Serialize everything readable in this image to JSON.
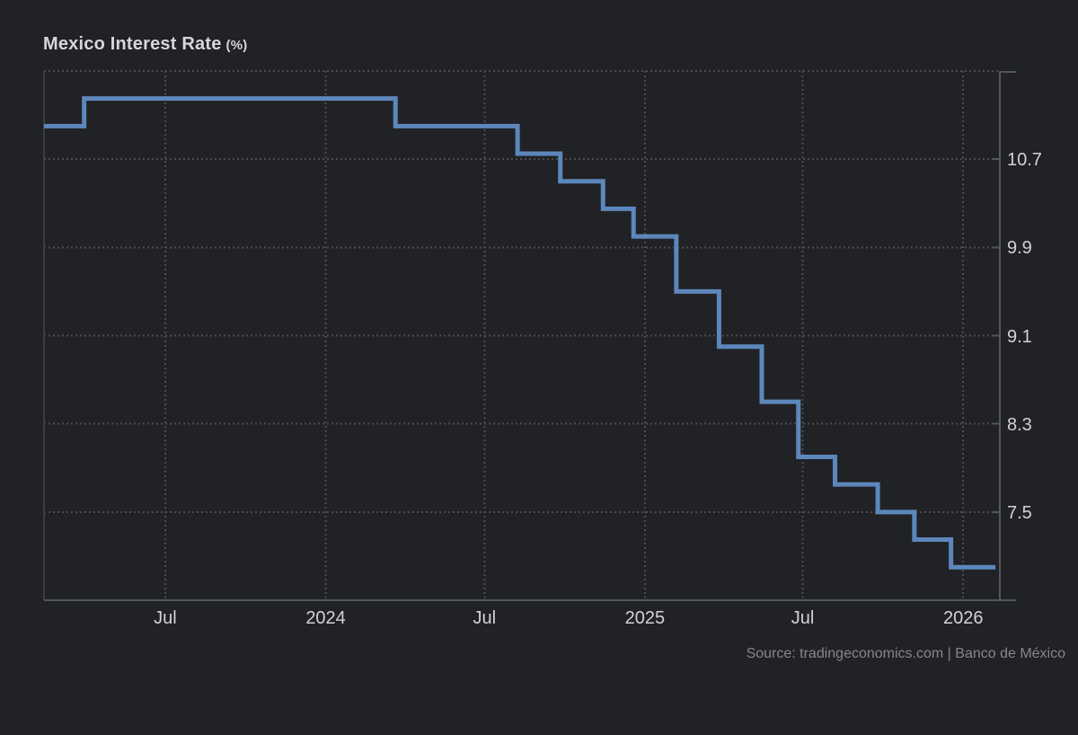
{
  "title": {
    "main": "Mexico Interest Rate",
    "unit": "(%)"
  },
  "source": "Source: tradingeconomics.com | Banco de México",
  "colors": {
    "background": "#212226",
    "line": "#5d87bc",
    "grid": "#4a4c4f",
    "axis": "#53565a",
    "border_left": "#3b3d40",
    "text": "#d2d3d5",
    "muted": "#85878a"
  },
  "chart_data": {
    "type": "line",
    "step": true,
    "title": "Mexico Interest Rate (%)",
    "xlabel": "",
    "ylabel": "",
    "grid": "dotted",
    "legend": false,
    "x_domain": [
      "2023-02-12",
      "2026-02-12"
    ],
    "y_domain": [
      6.7,
      11.5
    ],
    "y_ticks": [
      10.7,
      9.9,
      9.1,
      8.3,
      7.5
    ],
    "x_ticks": [
      {
        "date": "2023-07-01",
        "label": "Jul"
      },
      {
        "date": "2024-01-01",
        "label": "2024"
      },
      {
        "date": "2024-07-01",
        "label": "Jul"
      },
      {
        "date": "2025-01-01",
        "label": "2025"
      },
      {
        "date": "2025-07-01",
        "label": "Jul"
      },
      {
        "date": "2026-01-01",
        "label": "2026"
      }
    ],
    "series": [
      {
        "name": "Mexico Interest Rate",
        "unit": "%",
        "end_date": "2026-02-07",
        "points": [
          [
            "2023-02-12",
            11.0
          ],
          [
            "2023-03-30",
            11.25
          ],
          [
            "2024-03-21",
            11.0
          ],
          [
            "2024-08-08",
            10.75
          ],
          [
            "2024-09-26",
            10.5
          ],
          [
            "2024-11-14",
            10.25
          ],
          [
            "2024-12-19",
            10.0
          ],
          [
            "2025-02-06",
            9.5
          ],
          [
            "2025-03-27",
            9.0
          ],
          [
            "2025-05-15",
            8.5
          ],
          [
            "2025-06-26",
            8.0
          ],
          [
            "2025-08-07",
            7.75
          ],
          [
            "2025-09-25",
            7.5
          ],
          [
            "2025-11-06",
            7.25
          ],
          [
            "2025-12-18",
            7.0
          ]
        ]
      }
    ]
  }
}
